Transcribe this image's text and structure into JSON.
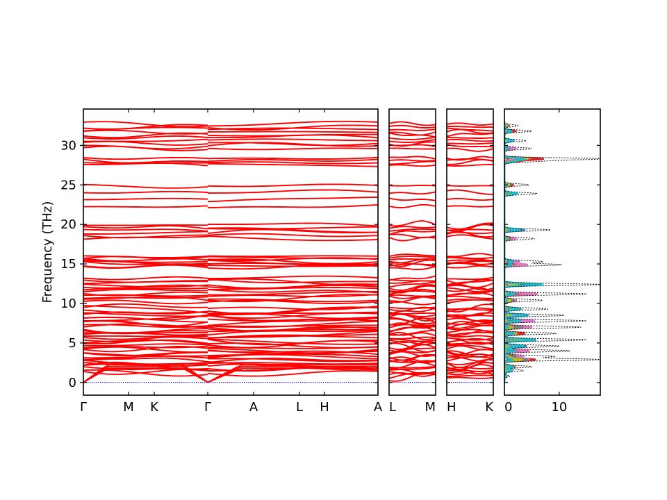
{
  "chart_data": {
    "type": "line",
    "ylabel": "Frequency (THz)",
    "ylim": [
      -1.6,
      34.6
    ],
    "yticks": [
      0,
      5,
      10,
      15,
      20,
      25,
      30
    ],
    "grid": false,
    "colors": {
      "band": "#ff0000",
      "zero_line": "#0000cc",
      "dos_total": "#000000"
    },
    "bands_segments": [
      {
        "labels": [
          "Γ",
          "M",
          "K",
          "Γ"
        ]
      },
      {
        "labels": [
          "Γ",
          "A",
          "L",
          "H",
          "A"
        ]
      },
      {
        "labels": [
          "L",
          "M"
        ]
      },
      {
        "labels": [
          "H",
          "K"
        ]
      }
    ],
    "dos_panel": {
      "xlim": [
        0,
        17.5
      ],
      "xticks": [
        0,
        10
      ],
      "partial_colors": [
        "#1f77b4",
        "#ff7f0e",
        "#2ca02c",
        "#d62728",
        "#9467bd",
        "#8c564b",
        "#e377c2",
        "#7f7f7f",
        "#bcbd22",
        "#17becf"
      ],
      "total_dos_peaks": [
        {
          "freq": 0.8,
          "value": 1.0
        },
        {
          "freq": 1.5,
          "value": 3.5
        },
        {
          "freq": 2.0,
          "value": 5.0
        },
        {
          "freq": 2.9,
          "value": 17.5
        },
        {
          "freq": 3.3,
          "value": 9.0
        },
        {
          "freq": 4.0,
          "value": 12.0
        },
        {
          "freq": 4.6,
          "value": 10.0
        },
        {
          "freq": 5.4,
          "value": 15.0
        },
        {
          "freq": 6.2,
          "value": 9.5
        },
        {
          "freq": 7.0,
          "value": 14.0
        },
        {
          "freq": 7.8,
          "value": 15.0
        },
        {
          "freq": 8.5,
          "value": 11.0
        },
        {
          "freq": 9.3,
          "value": 8.0
        },
        {
          "freq": 10.4,
          "value": 7.0
        },
        {
          "freq": 11.2,
          "value": 15.0
        },
        {
          "freq": 12.4,
          "value": 17.5
        },
        {
          "freq": 14.9,
          "value": 10.5
        },
        {
          "freq": 15.3,
          "value": 7.0
        },
        {
          "freq": 18.2,
          "value": 5.5
        },
        {
          "freq": 19.3,
          "value": 8.5
        },
        {
          "freq": 23.9,
          "value": 6.0
        },
        {
          "freq": 25.0,
          "value": 4.5
        },
        {
          "freq": 28.0,
          "value": 6.0
        },
        {
          "freq": 28.3,
          "value": 17.5
        },
        {
          "freq": 29.6,
          "value": 5.0
        },
        {
          "freq": 30.6,
          "value": 4.0
        },
        {
          "freq": 31.8,
          "value": 5.0
        },
        {
          "freq": 32.5,
          "value": 2.5
        }
      ]
    }
  }
}
